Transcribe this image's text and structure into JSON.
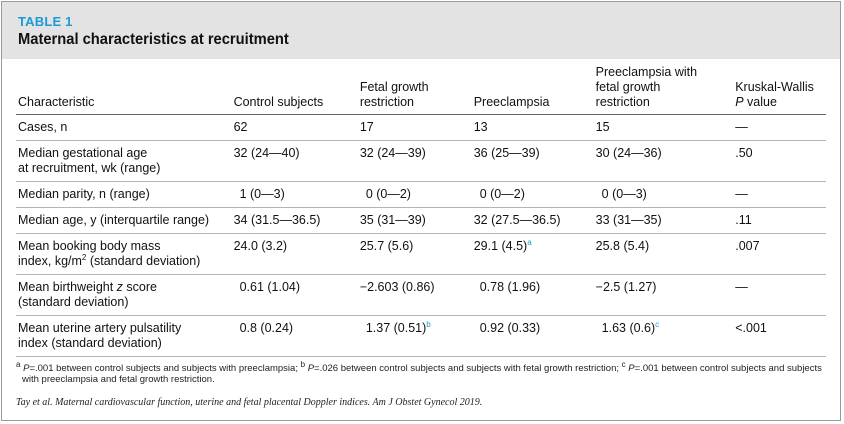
{
  "table_label": "TABLE 1",
  "title": "Maternal characteristics at recruitment",
  "columns": {
    "c0": "Characteristic",
    "c1": "Control subjects",
    "c2_l1": "Fetal growth",
    "c2_l2": "restriction",
    "c3": "Preeclampsia",
    "c4_l1": "Preeclampsia with",
    "c4_l2": "fetal growth",
    "c4_l3": "restriction",
    "c5_l1": "Kruskal-Wallis",
    "c5_l2_italic": "P",
    "c5_l2_rest": " value"
  },
  "rows": [
    {
      "c0_l1": "Cases, n",
      "c0_l2": "",
      "c1": "62",
      "c2": "17",
      "c3": "13",
      "c4": "15",
      "c5": "—"
    },
    {
      "c0_l1": "Median gestational age",
      "c0_l2": "at recruitment, wk (range)",
      "c1": "32 (24—40)",
      "c2": "32 (24—39)",
      "c3": "36 (25—39)",
      "c4": "30 (24—36)",
      "c5": ".50"
    },
    {
      "c0_l1": "Median parity, n (range)",
      "c0_l2": "",
      "c1": "1 (0—3)",
      "c2": "0 (0—2)",
      "c3": "0 (0—2)",
      "c4": "0 (0—3)",
      "c5": "—"
    },
    {
      "c0_l1": "Median age, y (interquartile range)",
      "c0_l2": "",
      "c1": "34 (31.5—36.5)",
      "c2": "35 (31—39)",
      "c3": "32 (27.5—36.5)",
      "c4": "33 (31—35)",
      "c5": ".11"
    },
    {
      "c0_l1": "Mean booking body mass",
      "c0_l2a": "index, kg/m",
      "c0_l2sup": "2",
      "c0_l2b": " (standard deviation)",
      "c1": "24.0 (3.2)",
      "c2": "25.7 (5.6)",
      "c3": "29.1 (4.5)",
      "c3_sup": "a",
      "c4": "25.8 (5.4)",
      "c5": ".007"
    },
    {
      "c0_l1a": "Mean birthweight ",
      "c0_l1i": "z",
      "c0_l1b": " score",
      "c0_l2": "(standard deviation)",
      "c1": "0.61 (1.04)",
      "c2": "−2.603 (0.86)",
      "c3": "0.78 (1.96)",
      "c4": "−2.5 (1.27)",
      "c5": "—"
    },
    {
      "c0_l1": "Mean uterine artery pulsatility",
      "c0_l2": "index (standard deviation)",
      "c1": "0.8 (0.24)",
      "c2": "1.37 (0.51)",
      "c2_sup": "b",
      "c3": "0.92 (0.33)",
      "c4": "1.63 (0.6)",
      "c4_sup": "c",
      "c5": "<.001"
    }
  ],
  "footnote": {
    "a_mark": "a",
    "a_p": "P",
    "a_text": "=.001 between control subjects and subjects with preeclampsia; ",
    "b_mark": "b",
    "b_p": "P",
    "b_text": "=.026 between control subjects and subjects with fetal growth restriction; ",
    "c_mark": "c",
    "c_p": "P",
    "c_text": "=.001 between control subjects and subjects",
    "line2": "with preeclampsia and fetal growth restriction."
  },
  "citation": "Tay et al. Maternal cardiovascular function, uterine and fetal placental Doppler indices. Am J Obstet Gynecol 2019."
}
